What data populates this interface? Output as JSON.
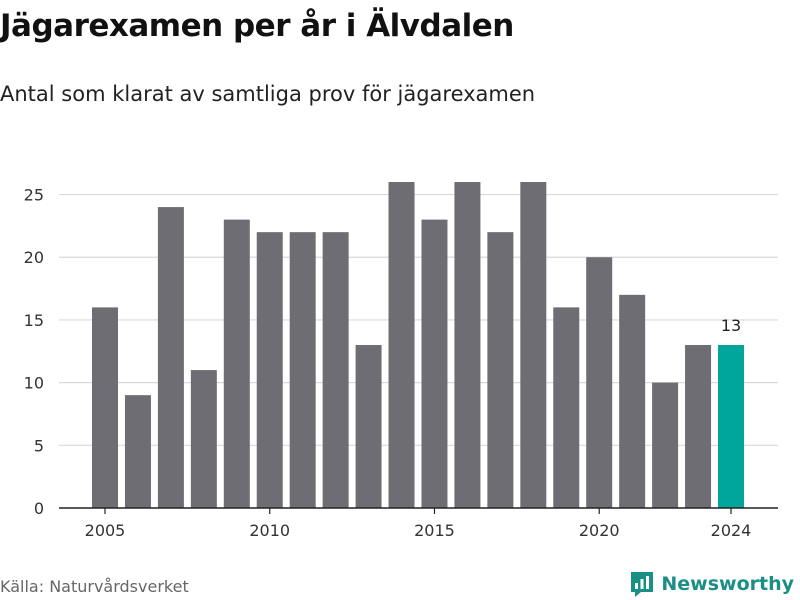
{
  "title": "Jägarexamen per år i Älvdalen",
  "subtitle": "Antal som klarat av samtliga prov för jägarexamen",
  "source": "Källa: Naturvårdsverket",
  "brand": "Newsworthy",
  "colors": {
    "bar": "#6e6d73",
    "highlight": "#00a69c",
    "grid": "#d9d9d9",
    "axis": "#222222",
    "brand": "#1a8f86"
  },
  "chart_data": {
    "type": "bar",
    "title": "Jägarexamen per år i Älvdalen",
    "subtitle": "Antal som klarat av samtliga prov för jägarexamen",
    "xlabel": "",
    "ylabel": "",
    "categories": [
      2005,
      2006,
      2007,
      2008,
      2009,
      2010,
      2011,
      2012,
      2013,
      2014,
      2015,
      2016,
      2017,
      2018,
      2019,
      2020,
      2021,
      2022,
      2023,
      2024
    ],
    "values": [
      16,
      9,
      24,
      11,
      23,
      22,
      22,
      22,
      13,
      26,
      23,
      26,
      22,
      26,
      16,
      20,
      17,
      10,
      13,
      13
    ],
    "highlight_category": 2024,
    "highlight_label": "13",
    "ylim": [
      0,
      26
    ],
    "yticks": [
      0,
      5,
      10,
      15,
      20,
      25
    ],
    "xticks": [
      2005,
      2010,
      2015,
      2020,
      2024
    ],
    "grid": true,
    "legend": "none"
  }
}
